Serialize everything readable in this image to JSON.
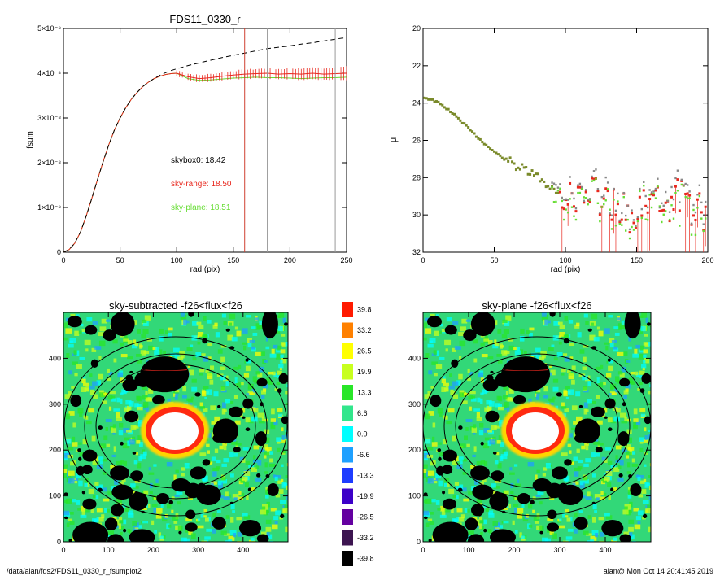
{
  "colors": {
    "axis": "#000000",
    "total": "#000000",
    "sky_range": "#e8281e",
    "sky_plane": "#66dd33",
    "vline_red": "#d04030",
    "vline_gray": "#9a9a9a"
  },
  "colorbar": {
    "labels": [
      "39.8",
      "33.2",
      "26.5",
      "19.9",
      "13.3",
      "6.6",
      "0.0",
      "-6.6",
      "-13.3",
      "-19.9",
      "-26.5",
      "-33.2",
      "-39.8"
    ],
    "colors": [
      "#ff1a00",
      "#ff8000",
      "#ffff00",
      "#c8ff1e",
      "#28e628",
      "#32e68c",
      "#00ffff",
      "#1ea0ff",
      "#1e3cff",
      "#3c00c8",
      "#6400a0",
      "#3c1450",
      "#000000"
    ]
  },
  "footer": {
    "path": "/data/alan/fds2/FDS11_0330_r_fsumplot2",
    "user": "alan@  Mon Oct 14 20:41:45 2019"
  },
  "chart_data": [
    {
      "type": "line",
      "title": "FDS11_0330_r",
      "xlabel": "rad (pix)",
      "ylabel": "fsum",
      "xlim": [
        0,
        250
      ],
      "ylim": [
        0,
        5e-08
      ],
      "xticks": [
        "0",
        "50",
        "100",
        "150",
        "200",
        "250"
      ],
      "yticks": [
        "0",
        "1×10⁻⁸",
        "2×10⁻⁸",
        "3×10⁻⁸",
        "4×10⁻⁸",
        "5×10⁻⁸"
      ],
      "x": [
        0,
        5,
        10,
        15,
        20,
        25,
        30,
        35,
        40,
        45,
        50,
        55,
        60,
        65,
        70,
        75,
        80,
        85,
        90,
        95,
        100,
        110,
        120,
        130,
        140,
        150,
        160,
        170,
        180,
        190,
        200,
        210,
        220,
        230,
        240,
        250
      ],
      "series": [
        {
          "values": [
            0,
            0.06,
            0.2,
            0.45,
            0.8,
            1.2,
            1.62,
            2.02,
            2.4,
            2.73,
            3.0,
            3.23,
            3.42,
            3.57,
            3.7,
            3.8,
            3.88,
            3.95,
            4.01,
            4.06,
            4.1,
            4.17,
            4.23,
            4.29,
            4.35,
            4.4,
            4.45,
            4.5,
            4.55,
            4.58,
            4.61,
            4.65,
            4.68,
            4.72,
            4.76,
            4.8
          ]
        },
        {
          "values": [
            0,
            0.06,
            0.2,
            0.45,
            0.8,
            1.2,
            1.62,
            2.02,
            2.4,
            2.73,
            3.0,
            3.23,
            3.42,
            3.57,
            3.7,
            3.8,
            3.88,
            3.93,
            3.97,
            3.99,
            4.0,
            3.92,
            3.88,
            3.9,
            3.93,
            3.96,
            3.98,
            3.99,
            4.0,
            3.98,
            3.99,
            3.98,
            4.0,
            3.98,
            3.99,
            4.0
          ]
        },
        {
          "values": [
            0,
            0.06,
            0.2,
            0.45,
            0.8,
            1.2,
            1.62,
            2.02,
            2.4,
            2.73,
            3.0,
            3.23,
            3.42,
            3.57,
            3.7,
            3.8,
            3.88,
            3.93,
            3.97,
            3.99,
            4.0,
            3.88,
            3.84,
            3.85,
            3.87,
            3.89,
            3.9,
            3.91,
            3.9,
            3.9,
            3.89,
            3.88,
            3.89,
            3.9,
            3.9,
            3.91
          ]
        }
      ],
      "yscale_note": "values in units of 1e-8",
      "vlines": [
        160,
        180,
        240
      ],
      "annotations": [
        {
          "text": "skybox0: 18.42",
          "color": "#000000"
        },
        {
          "text": "sky-range: 18.50",
          "color": "#e8281e"
        },
        {
          "text": "sky-plane: 18.51",
          "color": "#66dd33"
        }
      ]
    },
    {
      "type": "scatter",
      "title": "",
      "xlabel": "rad (pix)",
      "ylabel": "μ",
      "xlim": [
        0,
        200
      ],
      "ylim": [
        32,
        20
      ],
      "xticks": [
        "0",
        "50",
        "100",
        "150",
        "200"
      ],
      "yticks": [
        "20",
        "22",
        "24",
        "26",
        "28",
        "30",
        "32"
      ],
      "x": [
        1,
        5,
        10,
        15,
        20,
        25,
        30,
        35,
        40,
        45,
        50,
        55,
        60,
        65,
        70,
        75,
        80,
        85,
        90,
        95,
        100,
        105,
        110,
        115,
        120,
        125,
        130,
        135,
        140,
        145,
        150,
        155,
        160,
        165,
        170,
        175,
        180,
        185,
        190,
        195,
        199
      ],
      "values": [
        23.7,
        23.8,
        23.95,
        24.2,
        24.5,
        24.85,
        25.2,
        25.6,
        25.95,
        26.3,
        26.6,
        26.9,
        27.1,
        27.35,
        27.55,
        27.75,
        27.95,
        28.2,
        28.5,
        28.75,
        28.9,
        29.1,
        29.3,
        29.0,
        28.8,
        29.2,
        29.5,
        29.3,
        29.6,
        30.1,
        29.8,
        29.4,
        29.6,
        29.2,
        29.9,
        29.3,
        28.9,
        29.1,
        30.2,
        29.5,
        30.5
      ]
    },
    {
      "type": "heatmap",
      "title": "sky-subtracted -f26<flux<f26",
      "xlim": [
        0,
        500
      ],
      "ylim": [
        0,
        500
      ],
      "xticks": [
        "0",
        "100",
        "200",
        "300",
        "400"
      ],
      "yticks": [
        "0",
        "100",
        "200",
        "300",
        "400"
      ]
    },
    {
      "type": "heatmap",
      "title": "sky-plane -f26<flux<f26",
      "xlim": [
        0,
        500
      ],
      "ylim": [
        0,
        500
      ],
      "xticks": [
        "0",
        "100",
        "200",
        "300",
        "400"
      ],
      "yticks": [
        "0",
        "100",
        "200",
        "300",
        "400"
      ]
    }
  ]
}
